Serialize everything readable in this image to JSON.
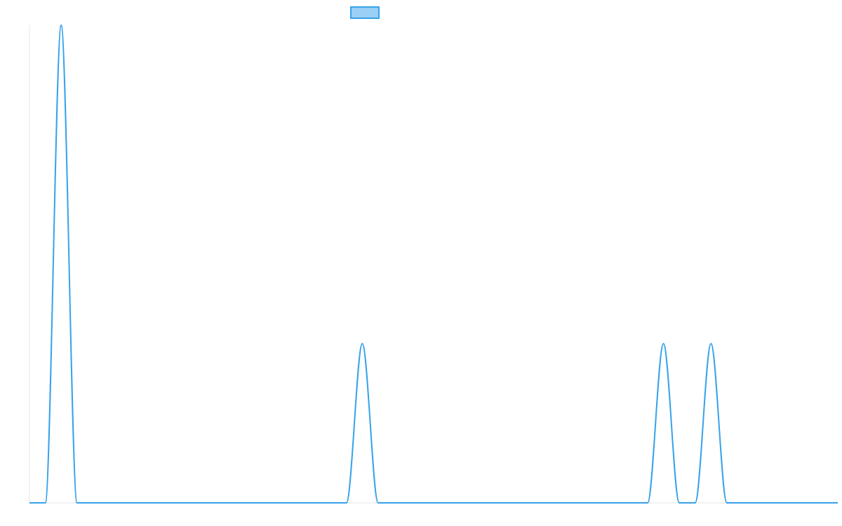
{
  "chart_data": {
    "type": "line",
    "title": "",
    "xlabel": "",
    "ylabel": "",
    "grid": false,
    "legend": {
      "placement": "top-center",
      "entries": [
        {
          "label": "",
          "color": "#36a2eb",
          "fill": "#9ad0f5"
        }
      ]
    },
    "xlim": [
      0,
      51
    ],
    "ylim": [
      0,
      3
    ],
    "series": [
      {
        "name": "",
        "color": "#36a2eb",
        "x": [
          0,
          1,
          2,
          3,
          4,
          5,
          6,
          7,
          8,
          9,
          10,
          11,
          12,
          13,
          14,
          15,
          16,
          17,
          18,
          19,
          20,
          21,
          22,
          23,
          24,
          25,
          26,
          27,
          28,
          29,
          30,
          31,
          32,
          33,
          34,
          35,
          36,
          37,
          38,
          39,
          40,
          41,
          42,
          43,
          44,
          45,
          46,
          47,
          48,
          49,
          50,
          51
        ],
        "values": [
          0,
          0,
          3,
          0,
          0,
          0,
          0,
          0,
          0,
          0,
          0,
          0,
          0,
          0,
          0,
          0,
          0,
          0,
          0,
          0,
          0,
          1,
          0,
          0,
          0,
          0,
          0,
          0,
          0,
          0,
          0,
          0,
          0,
          0,
          0,
          0,
          0,
          0,
          0,
          0,
          1,
          0,
          0,
          1,
          0,
          0,
          0,
          0,
          0,
          0,
          0,
          0
        ]
      }
    ]
  }
}
